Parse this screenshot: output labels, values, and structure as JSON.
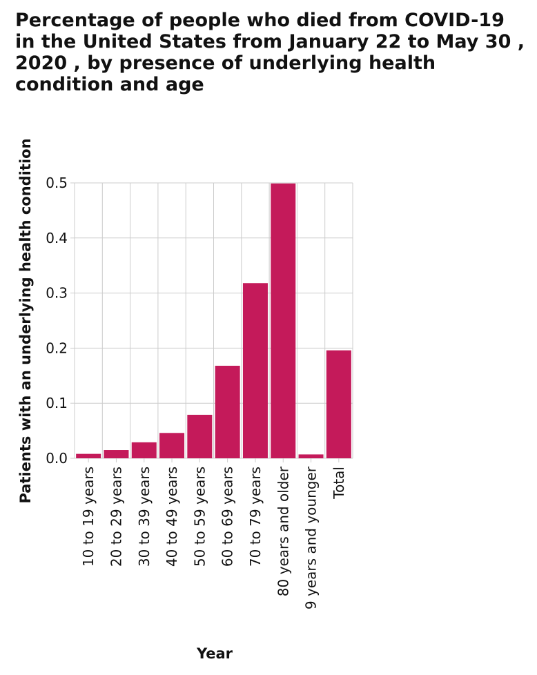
{
  "chart_data": {
    "type": "bar",
    "title": "Percentage of people who died from COVID-19 in the United States from January 22 to May 30 , 2020 , by presence of underlying health condition and age",
    "xlabel": "Year",
    "ylabel": "Patients with an underlying health condition",
    "categories": [
      "10 to 19 years",
      "20 to 29 years",
      "30 to 39 years",
      "40 to 49 years",
      "50 to 59 years",
      "60 to 69 years",
      "70 to 79 years",
      "80 years and older",
      "9 years and younger",
      "Total"
    ],
    "values": [
      0.008,
      0.015,
      0.029,
      0.046,
      0.079,
      0.168,
      0.318,
      0.499,
      0.007,
      0.196
    ],
    "ylim": [
      0,
      0.5
    ],
    "yticks": [
      "0.0",
      "0.1",
      "0.2",
      "0.3",
      "0.4",
      "0.5"
    ],
    "grid": true,
    "colors": {
      "bar": "#c41a5a",
      "grid": "#cccccc",
      "text": "#111111"
    }
  }
}
